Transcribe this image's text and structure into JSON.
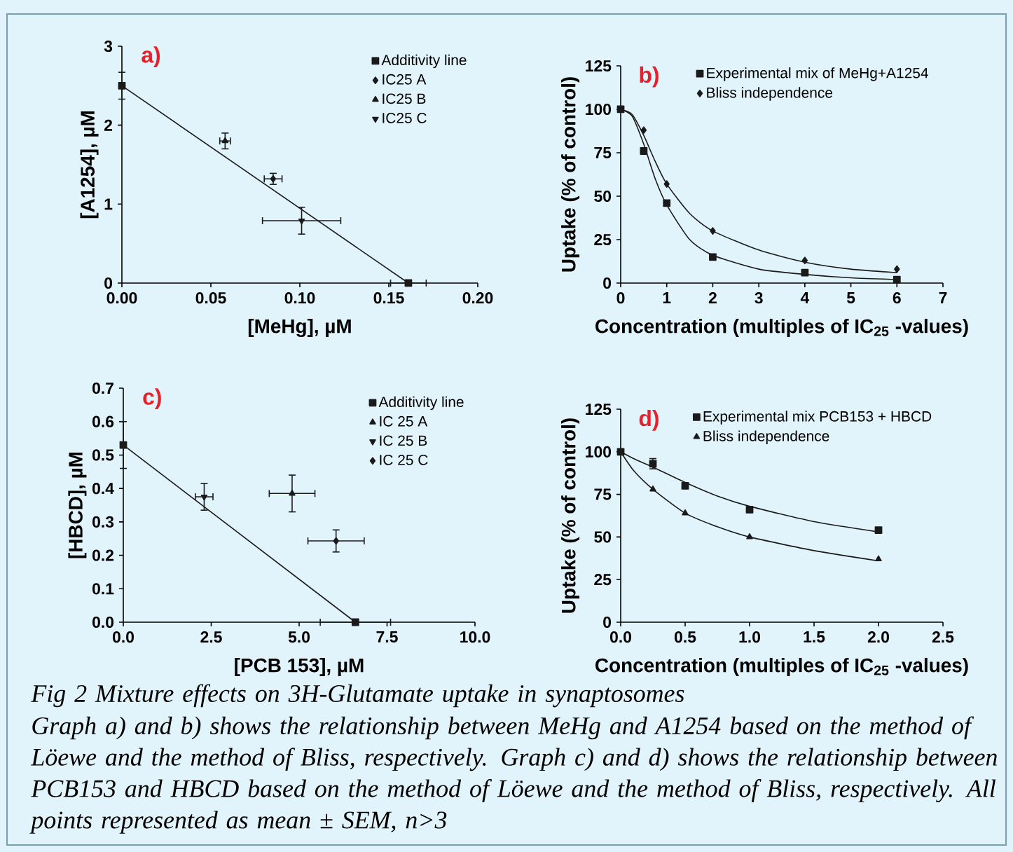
{
  "chart_data": [
    {
      "type": "scatter",
      "xlabel": "[MeHg], µM",
      "ylabel": "[A1254], µM",
      "annotations": [
        "a)"
      ],
      "xlim": [
        0,
        0.2
      ],
      "ylim": [
        0,
        3
      ],
      "xticks": [
        {
          "value": 0,
          "label": "0.00"
        },
        {
          "value": 0.05,
          "label": "0.05"
        },
        {
          "value": 0.1,
          "label": "0.10"
        },
        {
          "value": 0.15,
          "label": "0.15"
        },
        {
          "value": 0.2,
          "label": "0.20"
        }
      ],
      "yticks": [
        0,
        1,
        2,
        3
      ],
      "legend": "top right",
      "series": [
        {
          "name": "Additivity line",
          "type": "line",
          "marker": "square",
          "color": "#1a1a1a",
          "x": [
            0,
            0.161
          ],
          "values": [
            2.5,
            0
          ],
          "errors": [
            0.17,
            null
          ],
          "xerrors": [
            null,
            0.01
          ]
        },
        {
          "name": "IC25 A",
          "marker": "diamond",
          "color": "#1a1a1a",
          "x": [
            0.085
          ],
          "values": [
            1.32
          ],
          "errors": [
            0.07
          ],
          "xerrors": [
            0.005
          ]
        },
        {
          "name": "IC25 B",
          "marker": "triangle",
          "color": "#1a1a1a",
          "x": [
            0.058
          ],
          "values": [
            1.8
          ],
          "errors": [
            0.1
          ],
          "xerrors": [
            0.003
          ]
        },
        {
          "name": "IC25 C",
          "marker": "triangle_down",
          "color": "#1a1a1a",
          "x": [
            0.101
          ],
          "values": [
            0.79
          ],
          "errors": [
            0.17
          ],
          "xerrors": [
            0.022
          ]
        }
      ]
    },
    {
      "type": "scatter",
      "xlabel": "Concentration (multiples of IC$_{25}$ -values)",
      "ylabel": "Uptake (% of control)",
      "annotations": [
        "b)"
      ],
      "xlim": [
        0,
        7
      ],
      "ylim": [
        0,
        125
      ],
      "xticks": [
        0,
        1,
        2,
        3,
        4,
        5,
        6,
        7
      ],
      "yticks": [
        0,
        25,
        50,
        75,
        100,
        125
      ],
      "legend": "top",
      "series": [
        {
          "name": "Experimental mix of MeHg+A1254",
          "marker": "square",
          "color": "#1a1a1a",
          "x": [
            0,
            0.5,
            1,
            2,
            4,
            6
          ],
          "values": [
            100,
            76,
            46,
            15,
            6,
            2
          ]
        },
        {
          "name": "Bliss independence",
          "marker": "diamond",
          "color": "#1a1a1a",
          "x": [
            0.5,
            1,
            2,
            4,
            6
          ],
          "values": [
            88,
            57,
            30,
            13,
            8
          ]
        },
        {
          "type": "line",
          "marker": "none",
          "color": "#1a1a1a",
          "x": [
            0,
            0.25,
            0.5,
            0.75,
            1,
            1.5,
            2,
            3,
            4,
            5,
            6
          ],
          "values": [
            100,
            96,
            80,
            60,
            45,
            25,
            16,
            8,
            5,
            3,
            2
          ]
        },
        {
          "type": "line",
          "marker": "none",
          "color": "#1a1a1a",
          "x": [
            0,
            0.25,
            0.5,
            0.75,
            1,
            1.5,
            2,
            3,
            4,
            5,
            6
          ],
          "values": [
            100,
            97,
            85,
            70,
            57,
            40,
            30,
            19,
            12,
            8,
            6
          ]
        }
      ]
    },
    {
      "type": "scatter",
      "xlabel": "[PCB 153], µM",
      "ylabel": "[HBCD], µM",
      "annotations": [
        "c)"
      ],
      "xlim": [
        0,
        10
      ],
      "ylim": [
        0,
        0.7
      ],
      "xticks": [
        {
          "value": 0,
          "label": "0.0"
        },
        {
          "value": 2.5,
          "label": "2.5"
        },
        {
          "value": 5,
          "label": "5.0"
        },
        {
          "value": 7.5,
          "label": "7.5"
        },
        {
          "value": 10,
          "label": "10.0"
        }
      ],
      "yticks": [
        {
          "value": 0,
          "label": "0.0"
        },
        0.1,
        0.2,
        0.3,
        0.4,
        0.5,
        0.6,
        0.7
      ],
      "legend": "top right",
      "series": [
        {
          "name": "Additivity line",
          "type": "line",
          "marker": "square",
          "color": "#1a1a1a",
          "x": [
            0,
            6.6
          ],
          "values": [
            0.53,
            0
          ],
          "errors": [
            0.07,
            null
          ],
          "xerrors": [
            null,
            1.0
          ]
        },
        {
          "name": "IC 25 A",
          "marker": "triangle",
          "color": "#1a1a1a",
          "x": [
            4.8
          ],
          "values": [
            0.385
          ],
          "errors": [
            0.055
          ],
          "xerrors": [
            0.65
          ]
        },
        {
          "name": "IC 25 B",
          "marker": "triangle_down",
          "color": "#1a1a1a",
          "x": [
            2.3
          ],
          "values": [
            0.375
          ],
          "errors": [
            0.04
          ],
          "xerrors": [
            0.25
          ]
        },
        {
          "name": "IC 25 C",
          "marker": "diamond",
          "color": "#1a1a1a",
          "x": [
            6.05
          ],
          "values": [
            0.243
          ],
          "errors": [
            0.033
          ],
          "xerrors": [
            0.8
          ]
        }
      ]
    },
    {
      "type": "scatter",
      "xlabel": "Concentration (multiples of IC$_{25}$ -values)",
      "ylabel": "Uptake (% of control)",
      "annotations": [
        "d)"
      ],
      "xlim": [
        0,
        2.5
      ],
      "ylim": [
        0,
        125
      ],
      "xticks": [
        {
          "value": 0,
          "label": "0.0"
        },
        {
          "value": 0.5,
          "label": "0.5"
        },
        {
          "value": 1,
          "label": "1.0"
        },
        {
          "value": 1.5,
          "label": "1.5"
        },
        {
          "value": 2,
          "label": "2.0"
        },
        {
          "value": 2.5,
          "label": "2.5"
        }
      ],
      "yticks": [
        0,
        25,
        50,
        75,
        100,
        125
      ],
      "legend": "top",
      "series": [
        {
          "name": "Experimental mix PCB153 + HBCD",
          "marker": "square",
          "color": "#1a1a1a",
          "x": [
            0,
            0.25,
            0.5,
            1,
            2
          ],
          "values": [
            100,
            93,
            80,
            66,
            54
          ],
          "errors": [
            null,
            3,
            null,
            null,
            null
          ]
        },
        {
          "name": "Bliss independence",
          "marker": "triangle",
          "color": "#1a1a1a",
          "x": [
            0.25,
            0.5,
            1,
            2
          ],
          "values": [
            78,
            64,
            50,
            37
          ]
        },
        {
          "type": "line",
          "marker": "none",
          "color": "#1a1a1a",
          "x": [
            0,
            0.1,
            0.25,
            0.5,
            0.75,
            1,
            1.5,
            2
          ],
          "values": [
            100,
            96,
            91,
            82,
            74,
            68,
            59,
            53
          ]
        },
        {
          "type": "line",
          "marker": "none",
          "color": "#1a1a1a",
          "x": [
            0,
            0.1,
            0.25,
            0.5,
            0.75,
            1,
            1.5,
            2
          ],
          "values": [
            100,
            89,
            78,
            64,
            56,
            50,
            42,
            36
          ]
        }
      ]
    },
    {
      "type": "other",
      "annotations": [
        "Fig 2 Mixture effects on 3H-Glutamate uptake in synaptosomes",
        "Graph a) and b) shows the relationship between MeHg and A1254 based on the method of Löewe and the method of Bliss, respectively. Graph c) and d) shows the relationship between PCB153 and HBCD based on the method of Löewe and the method of Bliss, respectively. All points represented as mean ± SEM, n>3"
      ]
    }
  ]
}
